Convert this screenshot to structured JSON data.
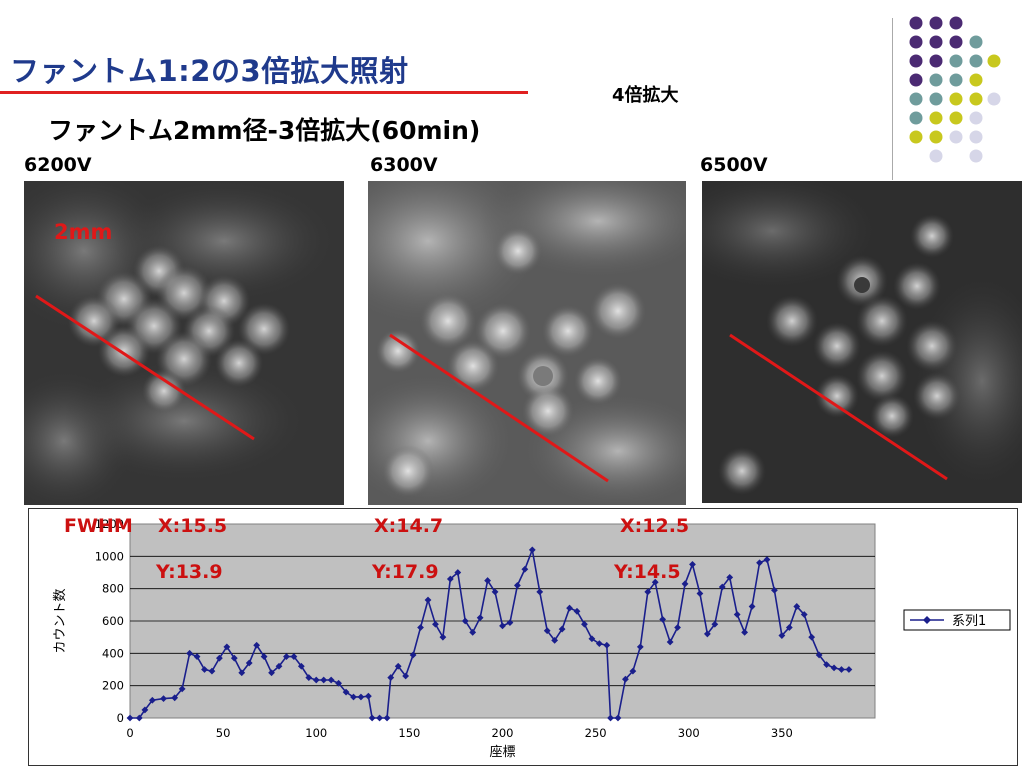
{
  "title": "ファントム1:2の3倍拡大照射",
  "subtitle": "ファントム2mm径-3倍拡大(60min)",
  "corner_note": "4倍拡大",
  "voltage_labels": [
    "6200V",
    "6300V",
    "6500V"
  ],
  "scale_label": "2mm",
  "fwhm": {
    "header": "FWHM",
    "x_values": [
      "X:15.5",
      "X:14.7",
      "X:12.5"
    ],
    "y_values": [
      "Y:13.9",
      "Y:17.9",
      "Y:14.5"
    ]
  },
  "decor_dot_colors": {
    "purple": "#4b2a73",
    "teal": "#6f9c9c",
    "yellow": "#c8c81e",
    "lavender": "#d6d6e8"
  },
  "highlight_color": "#e02020",
  "chart_data": {
    "type": "line",
    "title": "",
    "xlabel": "座標",
    "ylabel": "カウント数",
    "xlim": [
      0,
      400
    ],
    "ylim": [
      0,
      1200
    ],
    "x_ticks": [
      0,
      50,
      100,
      150,
      200,
      250,
      300,
      350
    ],
    "y_ticks": [
      0,
      200,
      400,
      600,
      800,
      1000
    ],
    "top_tick_label": "1200",
    "grid": true,
    "legend_position": "right",
    "series": [
      {
        "name": "系列1",
        "color": "#1a1f8c",
        "points": [
          [
            0,
            0
          ],
          [
            5,
            0
          ],
          [
            8,
            50
          ],
          [
            12,
            110
          ],
          [
            18,
            120
          ],
          [
            24,
            125
          ],
          [
            28,
            180
          ],
          [
            32,
            400
          ],
          [
            36,
            380
          ],
          [
            40,
            300
          ],
          [
            44,
            290
          ],
          [
            48,
            370
          ],
          [
            52,
            440
          ],
          [
            56,
            370
          ],
          [
            60,
            280
          ],
          [
            64,
            340
          ],
          [
            68,
            450
          ],
          [
            72,
            380
          ],
          [
            76,
            280
          ],
          [
            80,
            320
          ],
          [
            84,
            380
          ],
          [
            88,
            380
          ],
          [
            92,
            320
          ],
          [
            96,
            250
          ],
          [
            100,
            235
          ],
          [
            104,
            235
          ],
          [
            108,
            235
          ],
          [
            112,
            215
          ],
          [
            116,
            160
          ],
          [
            120,
            130
          ],
          [
            124,
            130
          ],
          [
            128,
            135
          ],
          [
            130,
            0
          ],
          [
            134,
            0
          ],
          [
            138,
            0
          ],
          [
            140,
            250
          ],
          [
            144,
            320
          ],
          [
            148,
            260
          ],
          [
            152,
            390
          ],
          [
            156,
            560
          ],
          [
            160,
            730
          ],
          [
            164,
            580
          ],
          [
            168,
            500
          ],
          [
            172,
            860
          ],
          [
            176,
            900
          ],
          [
            180,
            600
          ],
          [
            184,
            530
          ],
          [
            188,
            620
          ],
          [
            192,
            850
          ],
          [
            196,
            780
          ],
          [
            200,
            570
          ],
          [
            204,
            590
          ],
          [
            208,
            820
          ],
          [
            212,
            920
          ],
          [
            216,
            1040
          ],
          [
            220,
            780
          ],
          [
            224,
            540
          ],
          [
            228,
            480
          ],
          [
            232,
            550
          ],
          [
            236,
            680
          ],
          [
            240,
            660
          ],
          [
            244,
            580
          ],
          [
            248,
            490
          ],
          [
            252,
            460
          ],
          [
            256,
            450
          ],
          [
            258,
            0
          ],
          [
            262,
            0
          ],
          [
            266,
            240
          ],
          [
            270,
            290
          ],
          [
            274,
            440
          ],
          [
            278,
            780
          ],
          [
            282,
            840
          ],
          [
            286,
            610
          ],
          [
            290,
            470
          ],
          [
            294,
            560
          ],
          [
            298,
            830
          ],
          [
            302,
            950
          ],
          [
            306,
            770
          ],
          [
            310,
            520
          ],
          [
            314,
            580
          ],
          [
            318,
            810
          ],
          [
            322,
            870
          ],
          [
            326,
            640
          ],
          [
            330,
            530
          ],
          [
            334,
            690
          ],
          [
            338,
            960
          ],
          [
            342,
            980
          ],
          [
            346,
            790
          ],
          [
            350,
            510
          ],
          [
            354,
            560
          ],
          [
            358,
            690
          ],
          [
            362,
            640
          ],
          [
            366,
            500
          ],
          [
            370,
            390
          ],
          [
            374,
            330
          ],
          [
            378,
            310
          ],
          [
            382,
            300
          ],
          [
            386,
            300
          ]
        ]
      }
    ]
  }
}
